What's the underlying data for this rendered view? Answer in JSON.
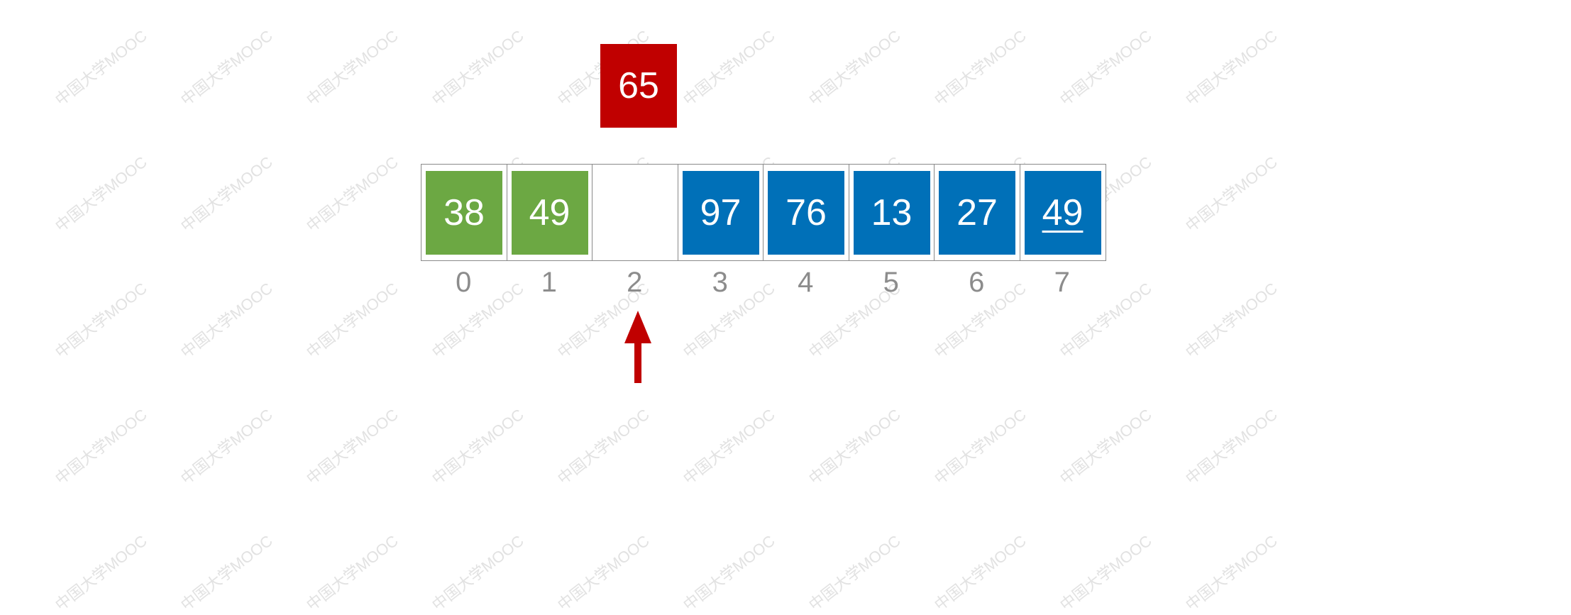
{
  "key": {
    "value": "65",
    "color": "#c00000"
  },
  "array": [
    {
      "value": "38",
      "state": "sorted"
    },
    {
      "value": "49",
      "state": "sorted"
    },
    {
      "value": "",
      "state": "empty"
    },
    {
      "value": "97",
      "state": "unsorted"
    },
    {
      "value": "76",
      "state": "unsorted"
    },
    {
      "value": "13",
      "state": "unsorted"
    },
    {
      "value": "27",
      "state": "unsorted"
    },
    {
      "value": "49",
      "state": "unsorted",
      "underlined": true
    }
  ],
  "indices": [
    "0",
    "1",
    "2",
    "3",
    "4",
    "5",
    "6",
    "7"
  ],
  "pointer": {
    "index": 2,
    "icon": "up-arrow-icon",
    "color": "#c00000"
  },
  "colors": {
    "sorted": "#6ca843",
    "unsorted": "#0070b8",
    "index_text": "#8c8c8c"
  },
  "watermark": "中国大学MOOC"
}
